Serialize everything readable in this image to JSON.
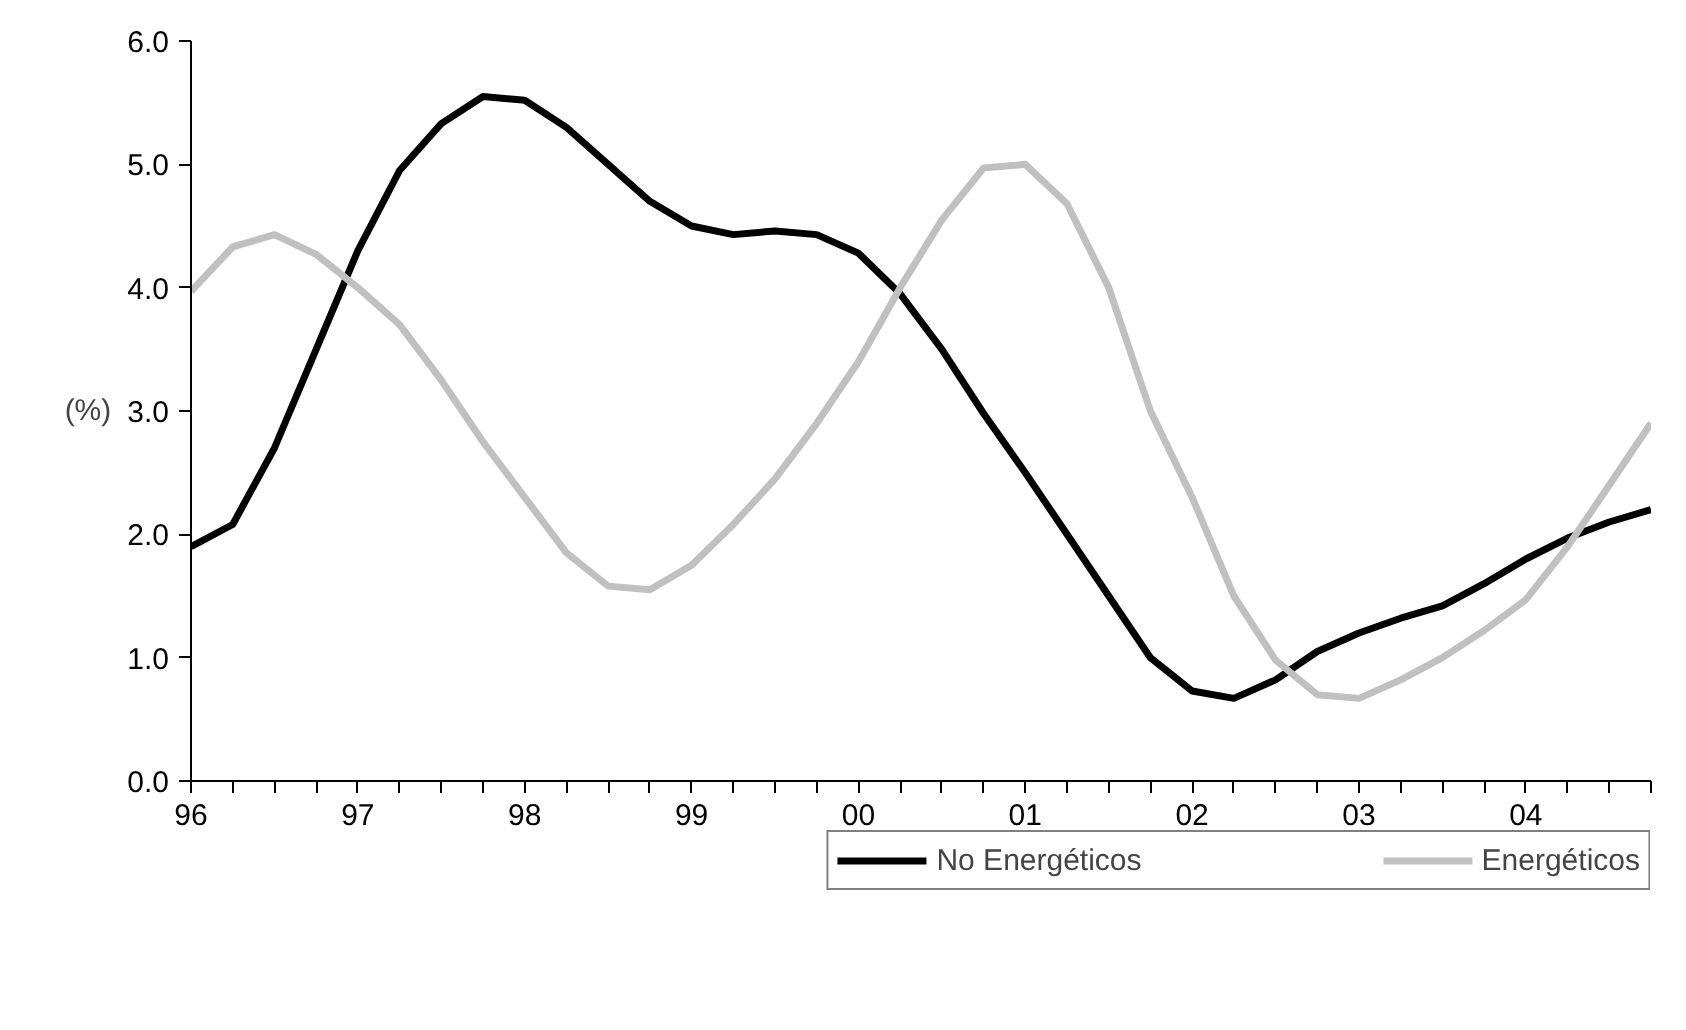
{
  "chart_data": {
    "type": "line",
    "ylabel": "(%)",
    "x": [
      1996,
      1996.25,
      1996.5,
      1996.75,
      1997,
      1997.25,
      1997.5,
      1997.75,
      1998,
      1998.25,
      1998.5,
      1998.75,
      1999,
      1999.25,
      1999.5,
      1999.75,
      2000,
      2000.25,
      2000.5,
      2000.75,
      2001,
      2001.25,
      2001.5,
      2001.75,
      2002,
      2002.25,
      2002.5,
      2002.75,
      2003,
      2003.25,
      2003.5,
      2003.75,
      2004,
      2004.25,
      2004.5,
      2004.75
    ],
    "series": [
      {
        "name": "No Energéticos",
        "color": "#000000",
        "values": [
          1.9,
          2.08,
          2.7,
          3.5,
          4.3,
          4.95,
          5.33,
          5.55,
          5.52,
          5.3,
          5.0,
          4.7,
          4.5,
          4.43,
          4.46,
          4.43,
          4.28,
          3.95,
          3.5,
          2.98,
          2.5,
          2.0,
          1.5,
          1.0,
          0.73,
          0.67,
          0.82,
          1.05,
          1.2,
          1.32,
          1.42,
          1.6,
          1.8,
          1.97,
          2.1,
          2.2
        ]
      },
      {
        "name": "Energéticos",
        "color": "#c0c0c0",
        "values": [
          3.97,
          4.33,
          4.43,
          4.27,
          4.0,
          3.7,
          3.25,
          2.75,
          2.3,
          1.85,
          1.58,
          1.55,
          1.75,
          2.08,
          2.45,
          2.9,
          3.4,
          4.0,
          4.55,
          4.97,
          5.0,
          4.68,
          4.0,
          3.0,
          2.3,
          1.5,
          0.98,
          0.7,
          0.67,
          0.82,
          1.0,
          1.22,
          1.47,
          1.9,
          2.4,
          2.9
        ]
      }
    ],
    "xlim": [
      1996,
      2004.75
    ],
    "xticks": [
      {
        "value": 1996,
        "label": "96"
      },
      {
        "value": 1996.25,
        "label": null
      },
      {
        "value": 1996.5,
        "label": null
      },
      {
        "value": 1996.75,
        "label": null
      },
      {
        "value": 1997,
        "label": "97"
      },
      {
        "value": 1997.25,
        "label": null
      },
      {
        "value": 1997.5,
        "label": null
      },
      {
        "value": 1997.75,
        "label": null
      },
      {
        "value": 1998,
        "label": "98"
      },
      {
        "value": 1998.25,
        "label": null
      },
      {
        "value": 1998.5,
        "label": null
      },
      {
        "value": 1998.75,
        "label": null
      },
      {
        "value": 1999,
        "label": "99"
      },
      {
        "value": 1999.25,
        "label": null
      },
      {
        "value": 1999.5,
        "label": null
      },
      {
        "value": 1999.75,
        "label": null
      },
      {
        "value": 2000,
        "label": "00"
      },
      {
        "value": 2000.25,
        "label": null
      },
      {
        "value": 2000.5,
        "label": null
      },
      {
        "value": 2000.75,
        "label": null
      },
      {
        "value": 2001,
        "label": "01"
      },
      {
        "value": 2001.25,
        "label": null
      },
      {
        "value": 2001.5,
        "label": null
      },
      {
        "value": 2001.75,
        "label": null
      },
      {
        "value": 2002,
        "label": "02"
      },
      {
        "value": 2002.25,
        "label": null
      },
      {
        "value": 2002.5,
        "label": null
      },
      {
        "value": 2002.75,
        "label": null
      },
      {
        "value": 2003,
        "label": "03"
      },
      {
        "value": 2003.25,
        "label": null
      },
      {
        "value": 2003.5,
        "label": null
      },
      {
        "value": 2003.75,
        "label": null
      },
      {
        "value": 2004,
        "label": "04"
      },
      {
        "value": 2004.25,
        "label": null
      },
      {
        "value": 2004.5,
        "label": null
      },
      {
        "value": 2004.75,
        "label": null
      }
    ],
    "ylim": [
      0,
      6
    ],
    "yticks": [
      {
        "value": 0,
        "label": "0.0"
      },
      {
        "value": 1,
        "label": "1.0"
      },
      {
        "value": 2,
        "label": "2.0"
      },
      {
        "value": 3,
        "label": "3.0"
      },
      {
        "value": 4,
        "label": "4.0"
      },
      {
        "value": 5,
        "label": "5.0"
      },
      {
        "value": 6,
        "label": "6.0"
      }
    ],
    "grid": false,
    "legend": "bottom",
    "line_style": "solid",
    "marker": "none"
  }
}
